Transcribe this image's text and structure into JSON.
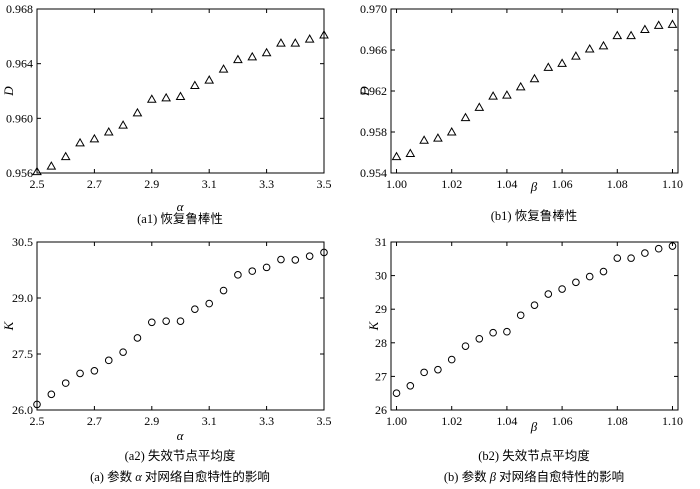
{
  "subcaptions": [
    "(a1) 恢复鲁棒性",
    "(b1) 恢复鲁棒性",
    "(a2) 失效节点平均度",
    "(b2) 失效节点平均度"
  ],
  "group_captions": {
    "a": {
      "prefix": "(a) 参数 ",
      "symbol": "α",
      "suffix": " 对网络自愈特性的影响"
    },
    "b": {
      "prefix": "(b) 参数 ",
      "symbol": "β",
      "suffix": " 对网络自愈特性的影响"
    }
  },
  "chart_data": [
    {
      "type": "scatter",
      "marker": "triangle",
      "xlabel": "α",
      "ylabel": "D",
      "xlim": [
        2.5,
        3.5
      ],
      "ylim": [
        0.956,
        0.968
      ],
      "xticks": [
        "2.5",
        "2.7",
        "2.9",
        "3.1",
        "3.3",
        "3.5"
      ],
      "yticks": [
        "0.956",
        "0.960",
        "0.964",
        "0.968"
      ],
      "x": [
        2.5,
        2.55,
        2.6,
        2.65,
        2.7,
        2.75,
        2.8,
        2.85,
        2.9,
        2.95,
        3.0,
        3.05,
        3.1,
        3.15,
        3.2,
        3.25,
        3.3,
        3.35,
        3.4,
        3.45,
        3.5
      ],
      "y": [
        0.9561,
        0.9565,
        0.9572,
        0.9582,
        0.9585,
        0.959,
        0.9595,
        0.9604,
        0.9614,
        0.9615,
        0.9616,
        0.9624,
        0.9628,
        0.9636,
        0.9643,
        0.9645,
        0.9648,
        0.9655,
        0.9655,
        0.9658,
        0.9661
      ]
    },
    {
      "type": "scatter",
      "marker": "triangle",
      "xlabel": "β",
      "ylabel": "D",
      "xlim": [
        0.998,
        1.102
      ],
      "ylim": [
        0.954,
        0.97
      ],
      "xticks": [
        "1.00",
        "1.02",
        "1.04",
        "1.06",
        "1.08",
        "1.10"
      ],
      "yticks": [
        "0.954",
        "0.958",
        "0.962",
        "0.966",
        "0.970"
      ],
      "x": [
        1.0,
        1.005,
        1.01,
        1.015,
        1.02,
        1.025,
        1.03,
        1.035,
        1.04,
        1.045,
        1.05,
        1.055,
        1.06,
        1.065,
        1.07,
        1.075,
        1.08,
        1.085,
        1.09,
        1.095,
        1.1
      ],
      "y": [
        0.9556,
        0.9559,
        0.9572,
        0.9574,
        0.958,
        0.9594,
        0.9604,
        0.9615,
        0.9616,
        0.9624,
        0.9632,
        0.9643,
        0.9647,
        0.9654,
        0.9661,
        0.9664,
        0.9674,
        0.9674,
        0.968,
        0.9684,
        0.9685
      ]
    },
    {
      "type": "scatter",
      "marker": "circle",
      "xlabel": "α",
      "ylabel": "K",
      "xlim": [
        2.5,
        3.5
      ],
      "ylim": [
        26.0,
        30.5
      ],
      "xticks": [
        "2.5",
        "2.7",
        "2.9",
        "3.1",
        "3.3",
        "3.5"
      ],
      "yticks": [
        "26.0",
        "27.5",
        "29.0",
        "30.5"
      ],
      "x": [
        2.5,
        2.55,
        2.6,
        2.65,
        2.7,
        2.75,
        2.8,
        2.85,
        2.9,
        2.95,
        3.0,
        3.05,
        3.1,
        3.15,
        3.2,
        3.25,
        3.3,
        3.35,
        3.4,
        3.45,
        3.5
      ],
      "y": [
        26.15,
        26.42,
        26.72,
        26.98,
        27.05,
        27.33,
        27.55,
        27.93,
        28.35,
        28.38,
        28.38,
        28.7,
        28.85,
        29.2,
        29.62,
        29.72,
        29.82,
        30.03,
        30.02,
        30.12,
        30.22
      ]
    },
    {
      "type": "scatter",
      "marker": "circle",
      "xlabel": "β",
      "ylabel": "K",
      "xlim": [
        0.998,
        1.102
      ],
      "ylim": [
        26,
        31
      ],
      "xticks": [
        "1.00",
        "1.02",
        "1.04",
        "1.06",
        "1.08",
        "1.10"
      ],
      "yticks": [
        "26",
        "27",
        "28",
        "29",
        "30",
        "31"
      ],
      "x": [
        1.0,
        1.005,
        1.01,
        1.015,
        1.02,
        1.025,
        1.03,
        1.035,
        1.04,
        1.045,
        1.05,
        1.055,
        1.06,
        1.065,
        1.07,
        1.075,
        1.08,
        1.085,
        1.09,
        1.095,
        1.1
      ],
      "y": [
        26.5,
        26.72,
        27.12,
        27.2,
        27.5,
        27.9,
        28.12,
        28.3,
        28.33,
        28.82,
        29.12,
        29.45,
        29.6,
        29.8,
        29.97,
        30.12,
        30.52,
        30.52,
        30.67,
        30.8,
        30.88
      ]
    }
  ]
}
